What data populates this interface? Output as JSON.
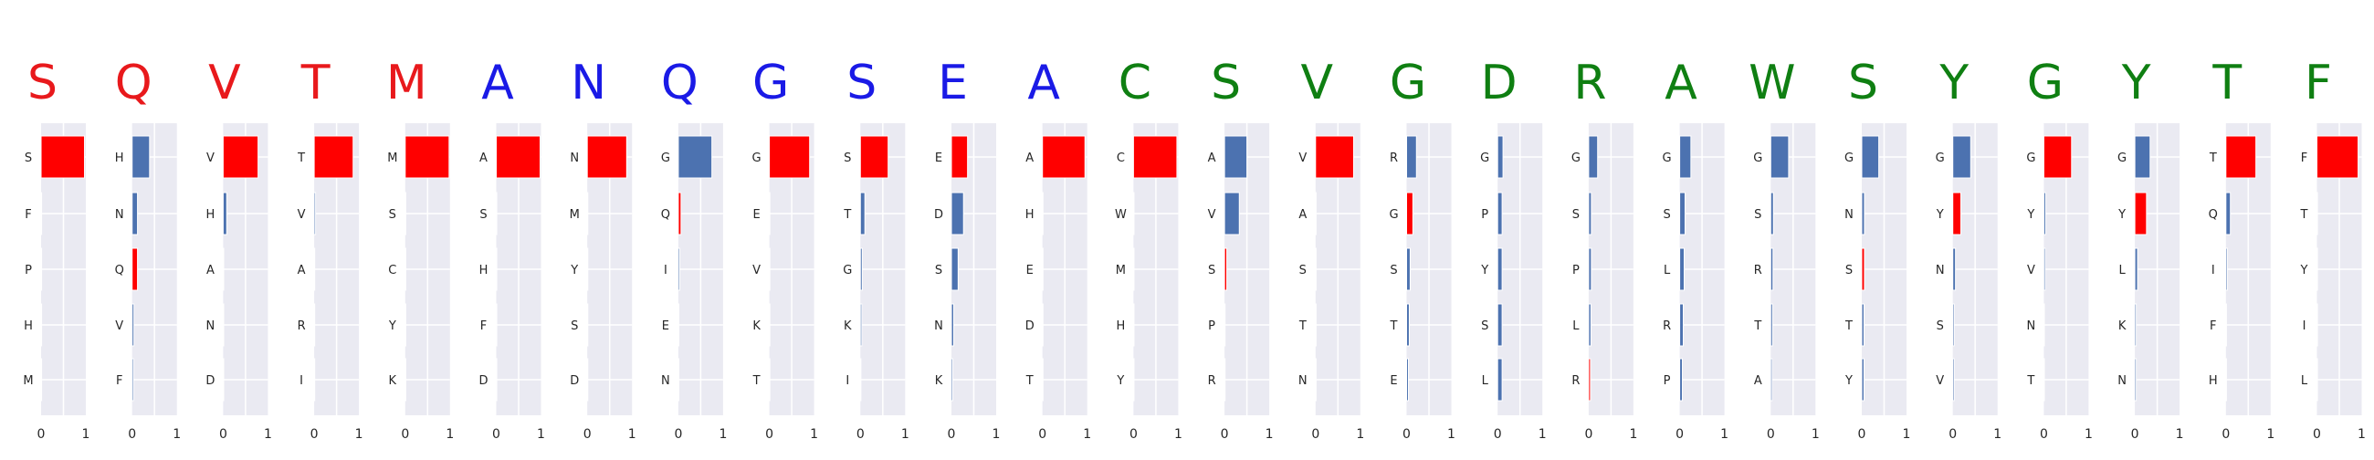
{
  "chart_data": {
    "type": "bar",
    "orientation": "horizontal",
    "xlim": [
      0,
      1
    ],
    "xticks": [
      "0",
      "1"
    ],
    "grid": true,
    "colors": {
      "red": "#ff0000",
      "blue": "#4c72b0",
      "letter_red": "#e8191c",
      "letter_blue": "#1a1ae6",
      "letter_green": "#0f7f12",
      "panel_bg": "#eaeaf2"
    },
    "panels": [
      {
        "residue": "S",
        "letter_color": "red",
        "bar_color": "red",
        "labels": [
          "S",
          "F",
          "P",
          "H",
          "M"
        ],
        "values": [
          0.97,
          0.0,
          0.0,
          0.0,
          0.0
        ]
      },
      {
        "residue": "Q",
        "letter_color": "red",
        "bar_color": "mixed",
        "labels": [
          "H",
          "N",
          "Q",
          "V",
          "F"
        ],
        "values": [
          0.39,
          0.12,
          0.12,
          0.04,
          0.01
        ],
        "bar_colors": [
          "blue",
          "blue",
          "red",
          "blue",
          "blue"
        ]
      },
      {
        "residue": "V",
        "letter_color": "red",
        "bar_color": "red",
        "labels": [
          "V",
          "H",
          "A",
          "N",
          "D"
        ],
        "values": [
          0.78,
          0.08,
          0.0,
          0.0,
          0.0
        ],
        "bar_colors": [
          "red",
          "blue",
          "blue",
          "blue",
          "blue"
        ]
      },
      {
        "residue": "T",
        "letter_color": "red",
        "bar_color": "red",
        "labels": [
          "T",
          "V",
          "A",
          "R",
          "I"
        ],
        "values": [
          0.87,
          0.02,
          0.0,
          0.0,
          0.0
        ],
        "bar_colors": [
          "red",
          "blue",
          "blue",
          "blue",
          "blue"
        ]
      },
      {
        "residue": "M",
        "letter_color": "red",
        "bar_color": "red",
        "labels": [
          "M",
          "S",
          "C",
          "Y",
          "K"
        ],
        "values": [
          0.98,
          0.0,
          0.0,
          0.0,
          0.0
        ]
      },
      {
        "residue": "A",
        "letter_color": "blue",
        "bar_color": "red",
        "labels": [
          "A",
          "S",
          "H",
          "F",
          "D"
        ],
        "values": [
          0.98,
          0.0,
          0.0,
          0.0,
          0.0
        ]
      },
      {
        "residue": "N",
        "letter_color": "blue",
        "bar_color": "red",
        "labels": [
          "N",
          "M",
          "Y",
          "S",
          "D"
        ],
        "values": [
          0.88,
          0.0,
          0.0,
          0.0,
          0.0
        ]
      },
      {
        "residue": "Q",
        "letter_color": "blue",
        "bar_color": "mixed",
        "labels": [
          "G",
          "Q",
          "I",
          "E",
          "N"
        ],
        "values": [
          0.75,
          0.06,
          0.02,
          0.0,
          0.0
        ],
        "bar_colors": [
          "blue",
          "red",
          "blue",
          "blue",
          "blue"
        ]
      },
      {
        "residue": "G",
        "letter_color": "blue",
        "bar_color": "red",
        "labels": [
          "G",
          "E",
          "V",
          "K",
          "T"
        ],
        "values": [
          0.9,
          0.0,
          0.0,
          0.0,
          0.0
        ]
      },
      {
        "residue": "S",
        "letter_color": "blue",
        "bar_color": "mixed",
        "labels": [
          "S",
          "T",
          "G",
          "K",
          "I"
        ],
        "values": [
          0.62,
          0.1,
          0.04,
          0.02,
          0.0
        ],
        "bar_colors": [
          "red",
          "blue",
          "blue",
          "blue",
          "blue"
        ]
      },
      {
        "residue": "E",
        "letter_color": "blue",
        "bar_color": "mixed",
        "labels": [
          "E",
          "D",
          "S",
          "N",
          "K"
        ],
        "values": [
          0.36,
          0.27,
          0.15,
          0.05,
          0.01
        ],
        "bar_colors": [
          "red",
          "blue",
          "blue",
          "blue",
          "blue"
        ]
      },
      {
        "residue": "A",
        "letter_color": "blue",
        "bar_color": "red",
        "labels": [
          "A",
          "H",
          "E",
          "D",
          "T"
        ],
        "values": [
          0.95,
          0.0,
          0.0,
          0.0,
          0.0
        ]
      },
      {
        "residue": "C",
        "letter_color": "green",
        "bar_color": "red",
        "labels": [
          "C",
          "W",
          "M",
          "H",
          "Y"
        ],
        "values": [
          0.97,
          0.0,
          0.0,
          0.0,
          0.0
        ]
      },
      {
        "residue": "S",
        "letter_color": "green",
        "bar_color": "mixed",
        "labels": [
          "A",
          "V",
          "S",
          "P",
          "R"
        ],
        "values": [
          0.5,
          0.33,
          0.05,
          0.0,
          0.0
        ],
        "bar_colors": [
          "blue",
          "blue",
          "red",
          "blue",
          "blue"
        ]
      },
      {
        "residue": "V",
        "letter_color": "green",
        "bar_color": "red",
        "labels": [
          "V",
          "A",
          "S",
          "T",
          "N"
        ],
        "values": [
          0.85,
          0.0,
          0.0,
          0.0,
          0.0
        ]
      },
      {
        "residue": "G",
        "letter_color": "green",
        "bar_color": "mixed",
        "labels": [
          "R",
          "G",
          "S",
          "T",
          "E"
        ],
        "values": [
          0.22,
          0.14,
          0.08,
          0.06,
          0.04
        ],
        "bar_colors": [
          "blue",
          "red",
          "blue",
          "blue",
          "blue"
        ]
      },
      {
        "residue": "D",
        "letter_color": "green",
        "bar_color": "blue",
        "labels": [
          "G",
          "P",
          "Y",
          "S",
          "L"
        ],
        "values": [
          0.12,
          0.1,
          0.1,
          0.1,
          0.1
        ]
      },
      {
        "residue": "R",
        "letter_color": "green",
        "bar_color": "mixed",
        "labels": [
          "G",
          "S",
          "P",
          "L",
          "R"
        ],
        "values": [
          0.2,
          0.06,
          0.06,
          0.05,
          0.04
        ],
        "bar_colors": [
          "blue",
          "blue",
          "blue",
          "blue",
          "red"
        ]
      },
      {
        "residue": "A",
        "letter_color": "green",
        "bar_color": "blue",
        "labels": [
          "G",
          "S",
          "L",
          "R",
          "P"
        ],
        "values": [
          0.25,
          0.12,
          0.1,
          0.08,
          0.06
        ]
      },
      {
        "residue": "W",
        "letter_color": "green",
        "bar_color": "blue",
        "labels": [
          "G",
          "S",
          "R",
          "T",
          "A"
        ],
        "values": [
          0.4,
          0.06,
          0.05,
          0.04,
          0.02
        ]
      },
      {
        "residue": "S",
        "letter_color": "green",
        "bar_color": "mixed",
        "labels": [
          "G",
          "N",
          "S",
          "T",
          "Y"
        ],
        "values": [
          0.38,
          0.06,
          0.06,
          0.05,
          0.05
        ],
        "bar_colors": [
          "blue",
          "blue",
          "red",
          "blue",
          "blue"
        ]
      },
      {
        "residue": "Y",
        "letter_color": "green",
        "bar_color": "mixed",
        "labels": [
          "G",
          "Y",
          "N",
          "S",
          "V"
        ],
        "values": [
          0.4,
          0.18,
          0.06,
          0.03,
          0.02
        ],
        "bar_colors": [
          "blue",
          "red",
          "blue",
          "blue",
          "blue"
        ]
      },
      {
        "residue": "G",
        "letter_color": "green",
        "bar_color": "mixed",
        "labels": [
          "G",
          "Y",
          "V",
          "N",
          "T"
        ],
        "values": [
          0.62,
          0.04,
          0.01,
          0.0,
          0.0
        ],
        "bar_colors": [
          "red",
          "blue",
          "blue",
          "blue",
          "blue"
        ]
      },
      {
        "residue": "Y",
        "letter_color": "green",
        "bar_color": "mixed",
        "labels": [
          "G",
          "Y",
          "L",
          "K",
          "N"
        ],
        "values": [
          0.34,
          0.26,
          0.06,
          0.03,
          0.01
        ],
        "bar_colors": [
          "blue",
          "red",
          "blue",
          "blue",
          "blue"
        ]
      },
      {
        "residue": "T",
        "letter_color": "green",
        "bar_color": "mixed",
        "labels": [
          "T",
          "Q",
          "I",
          "F",
          "H"
        ],
        "values": [
          0.67,
          0.1,
          0.02,
          0.0,
          0.0
        ],
        "bar_colors": [
          "red",
          "blue",
          "blue",
          "blue",
          "blue"
        ]
      },
      {
        "residue": "F",
        "letter_color": "green",
        "bar_color": "red",
        "labels": [
          "F",
          "T",
          "Y",
          "I",
          "L"
        ],
        "values": [
          0.92,
          0.0,
          0.0,
          0.0,
          0.0
        ]
      }
    ]
  }
}
